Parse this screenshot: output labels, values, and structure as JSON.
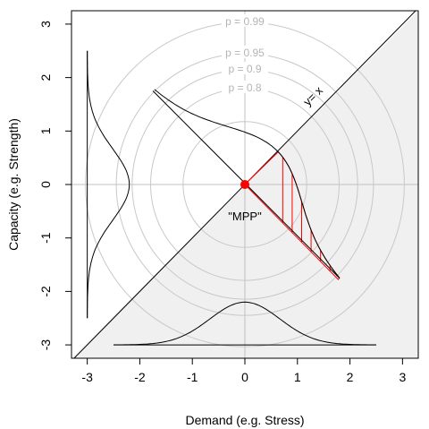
{
  "chart_data": {
    "type": "scatter",
    "xlabel": "Demand (e.g. Stress)",
    "ylabel": "Capacity (e.g. Strength)",
    "xlim": [
      -3.3,
      3.3
    ],
    "ylim": [
      -3.25,
      3.25
    ],
    "xticks": [
      -3,
      -2,
      -1,
      0,
      1,
      2,
      3
    ],
    "yticks": [
      -3,
      -2,
      -1,
      0,
      1,
      2,
      3
    ],
    "grid_lines": {
      "x": 0,
      "y": 0
    },
    "probability_contours": [
      {
        "label": "p = 0.8",
        "radius": 1.794
      },
      {
        "label": "p = 0.9",
        "radius": 2.146
      },
      {
        "label": "p = 0.95",
        "radius": 2.448
      },
      {
        "label": "p = 0.99",
        "radius": 3.035
      }
    ],
    "extra_circles": [
      1.177
    ],
    "limit_state_line": {
      "label": "y= x",
      "slope": 1,
      "intercept": 0
    },
    "mpp": {
      "label": "\"MPP\"",
      "x": 0,
      "y": 0,
      "color": "#ff0000"
    },
    "failure_region_fill": "#f0f0f0",
    "hatch_color": "#ff0000",
    "demand_pdf": {
      "baseline_y": -3,
      "x_range": [
        -2.5,
        2.5
      ],
      "peak_height": 0.8
    },
    "capacity_pdf": {
      "baseline_x": -3,
      "y_range": [
        -2.5,
        2.5
      ],
      "peak_height": 0.8
    },
    "joint_conditional_segment": {
      "from": [
        -1.75,
        1.75
      ],
      "to": [
        1.8,
        -1.75
      ]
    },
    "conditional_pdf_peak_height": 0.4
  }
}
